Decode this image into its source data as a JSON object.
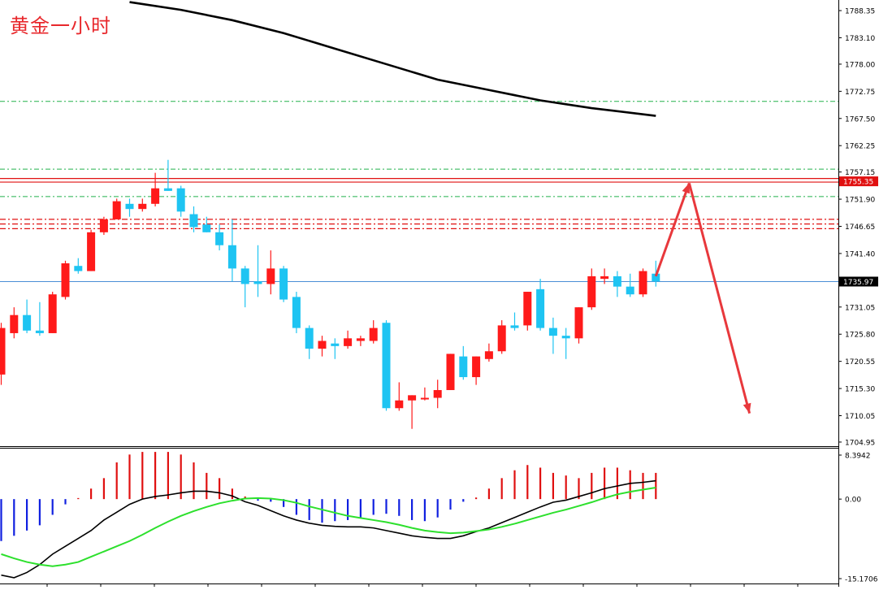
{
  "title": "黄金一小时",
  "chart_data": {
    "type": "candlestick",
    "main": {
      "y_ticks": [
        1788.35,
        1783.1,
        1778.0,
        1772.75,
        1767.5,
        1762.25,
        1757.15,
        1751.9,
        1746.65,
        1741.4,
        1731.05,
        1725.8,
        1720.55,
        1715.3,
        1710.05,
        1704.95
      ],
      "ylim": [
        1704.0,
        1790.4
      ],
      "current_price": 1735.97,
      "resistance_label": 1755.35,
      "candles": [
        {
          "o": 1718.0,
          "h": 1728.0,
          "l": 1716.0,
          "c": 1727.0,
          "dir": "up"
        },
        {
          "o": 1726.0,
          "h": 1731.0,
          "l": 1725.0,
          "c": 1729.5,
          "dir": "up"
        },
        {
          "o": 1729.5,
          "h": 1732.5,
          "l": 1726.0,
          "c": 1726.5,
          "dir": "down"
        },
        {
          "o": 1726.0,
          "h": 1732.0,
          "l": 1725.5,
          "c": 1726.5,
          "dir": "down"
        },
        {
          "o": 1726.0,
          "h": 1734.0,
          "l": 1726.0,
          "c": 1733.5,
          "dir": "up"
        },
        {
          "o": 1733.0,
          "h": 1740.0,
          "l": 1732.5,
          "c": 1739.5,
          "dir": "up"
        },
        {
          "o": 1739.0,
          "h": 1740.5,
          "l": 1737.5,
          "c": 1738.0,
          "dir": "down"
        },
        {
          "o": 1738.0,
          "h": 1746.0,
          "l": 1738.0,
          "c": 1745.5,
          "dir": "up"
        },
        {
          "o": 1745.5,
          "h": 1748.5,
          "l": 1745.0,
          "c": 1748.0,
          "dir": "up"
        },
        {
          "o": 1748.0,
          "h": 1752.0,
          "l": 1748.0,
          "c": 1751.5,
          "dir": "up"
        },
        {
          "o": 1751.0,
          "h": 1752.0,
          "l": 1748.5,
          "c": 1750.0,
          "dir": "down"
        },
        {
          "o": 1750.0,
          "h": 1752.0,
          "l": 1749.5,
          "c": 1751.0,
          "dir": "up"
        },
        {
          "o": 1751.0,
          "h": 1757.0,
          "l": 1750.5,
          "c": 1754.0,
          "dir": "up"
        },
        {
          "o": 1754.0,
          "h": 1759.5,
          "l": 1753.5,
          "c": 1753.5,
          "dir": "down"
        },
        {
          "o": 1754.0,
          "h": 1754.5,
          "l": 1748.5,
          "c": 1749.5,
          "dir": "down"
        },
        {
          "o": 1749.0,
          "h": 1750.5,
          "l": 1745.5,
          "c": 1746.5,
          "dir": "down"
        },
        {
          "o": 1747.0,
          "h": 1748.5,
          "l": 1745.5,
          "c": 1745.5,
          "dir": "down"
        },
        {
          "o": 1745.5,
          "h": 1747.0,
          "l": 1742.0,
          "c": 1743.0,
          "dir": "down"
        },
        {
          "o": 1743.0,
          "h": 1748.0,
          "l": 1736.0,
          "c": 1738.5,
          "dir": "down"
        },
        {
          "o": 1738.5,
          "h": 1739.0,
          "l": 1731.0,
          "c": 1735.5,
          "dir": "down"
        },
        {
          "o": 1736.0,
          "h": 1743.0,
          "l": 1733.0,
          "c": 1735.5,
          "dir": "down"
        },
        {
          "o": 1735.5,
          "h": 1742.0,
          "l": 1733.5,
          "c": 1738.5,
          "dir": "up"
        },
        {
          "o": 1738.5,
          "h": 1739.0,
          "l": 1732.0,
          "c": 1732.5,
          "dir": "down"
        },
        {
          "o": 1733.0,
          "h": 1734.0,
          "l": 1726.0,
          "c": 1727.0,
          "dir": "down"
        },
        {
          "o": 1727.0,
          "h": 1727.5,
          "l": 1721.0,
          "c": 1723.0,
          "dir": "down"
        },
        {
          "o": 1723.0,
          "h": 1725.5,
          "l": 1721.5,
          "c": 1724.5,
          "dir": "up"
        },
        {
          "o": 1724.0,
          "h": 1725.0,
          "l": 1721.0,
          "c": 1723.5,
          "dir": "down"
        },
        {
          "o": 1723.5,
          "h": 1726.5,
          "l": 1723.0,
          "c": 1725.0,
          "dir": "up"
        },
        {
          "o": 1725.0,
          "h": 1725.5,
          "l": 1723.5,
          "c": 1724.5,
          "dir": "up"
        },
        {
          "o": 1724.5,
          "h": 1728.5,
          "l": 1724.0,
          "c": 1727.0,
          "dir": "up"
        },
        {
          "o": 1728.0,
          "h": 1728.5,
          "l": 1711.0,
          "c": 1711.5,
          "dir": "down"
        },
        {
          "o": 1711.5,
          "h": 1716.5,
          "l": 1711.0,
          "c": 1713.0,
          "dir": "up"
        },
        {
          "o": 1713.0,
          "h": 1714.0,
          "l": 1707.5,
          "c": 1714.0,
          "dir": "up"
        },
        {
          "o": 1713.5,
          "h": 1715.5,
          "l": 1713.0,
          "c": 1713.5,
          "dir": "up"
        },
        {
          "o": 1713.5,
          "h": 1717.0,
          "l": 1711.5,
          "c": 1715.0,
          "dir": "up"
        },
        {
          "o": 1715.0,
          "h": 1722.0,
          "l": 1715.0,
          "c": 1722.0,
          "dir": "up"
        },
        {
          "o": 1721.5,
          "h": 1723.5,
          "l": 1717.0,
          "c": 1717.5,
          "dir": "down"
        },
        {
          "o": 1717.5,
          "h": 1721.5,
          "l": 1716.0,
          "c": 1721.5,
          "dir": "up"
        },
        {
          "o": 1721.0,
          "h": 1724.0,
          "l": 1720.5,
          "c": 1722.5,
          "dir": "up"
        },
        {
          "o": 1722.5,
          "h": 1728.5,
          "l": 1722.0,
          "c": 1727.5,
          "dir": "up"
        },
        {
          "o": 1727.0,
          "h": 1730.0,
          "l": 1726.5,
          "c": 1727.5,
          "dir": "down"
        },
        {
          "o": 1727.5,
          "h": 1734.0,
          "l": 1726.5,
          "c": 1734.0,
          "dir": "up"
        },
        {
          "o": 1734.5,
          "h": 1736.5,
          "l": 1726.5,
          "c": 1727.0,
          "dir": "down"
        },
        {
          "o": 1727.0,
          "h": 1729.0,
          "l": 1722.0,
          "c": 1725.5,
          "dir": "down"
        },
        {
          "o": 1725.5,
          "h": 1727.0,
          "l": 1721.0,
          "c": 1725.0,
          "dir": "down"
        },
        {
          "o": 1725.0,
          "h": 1731.0,
          "l": 1724.0,
          "c": 1731.0,
          "dir": "up"
        },
        {
          "o": 1731.0,
          "h": 1738.5,
          "l": 1730.5,
          "c": 1737.0,
          "dir": "up"
        },
        {
          "o": 1737.0,
          "h": 1738.5,
          "l": 1735.5,
          "c": 1736.5,
          "dir": "up"
        },
        {
          "o": 1737.0,
          "h": 1738.0,
          "l": 1733.0,
          "c": 1735.0,
          "dir": "down"
        },
        {
          "o": 1735.0,
          "h": 1737.5,
          "l": 1733.0,
          "c": 1733.5,
          "dir": "down"
        },
        {
          "o": 1733.5,
          "h": 1738.5,
          "l": 1733.0,
          "c": 1738.0,
          "dir": "up"
        },
        {
          "o": 1737.5,
          "h": 1740.0,
          "l": 1735.0,
          "c": 1736.0,
          "dir": "down"
        }
      ],
      "ma_line": [
        {
          "i": 10,
          "v": 1790.0
        },
        {
          "i": 14,
          "v": 1788.5
        },
        {
          "i": 18,
          "v": 1786.5
        },
        {
          "i": 22,
          "v": 1784.0
        },
        {
          "i": 26,
          "v": 1781.0
        },
        {
          "i": 30,
          "v": 1778.0
        },
        {
          "i": 34,
          "v": 1775.0
        },
        {
          "i": 38,
          "v": 1773.0
        },
        {
          "i": 42,
          "v": 1771.0
        },
        {
          "i": 46,
          "v": 1769.5
        },
        {
          "i": 51,
          "v": 1768.0
        }
      ],
      "green_levels": [
        1770.8,
        1757.7,
        1752.4
      ],
      "red_solid_levels": [
        1755.9,
        1755.2
      ],
      "red_dashdot_levels": [
        1748.0,
        1747.1,
        1746.2
      ],
      "forecast_arrows": [
        {
          "from_i": 51,
          "from_v": 1737.0,
          "to_i": 53.6,
          "to_v": 1755.0
        },
        {
          "from_i": 53.6,
          "from_v": 1755.0,
          "to_i": 58.3,
          "to_v": 1710.5
        }
      ]
    },
    "macd": {
      "y_ticks": [
        8.3942,
        0.0,
        -15.1706
      ],
      "ylim": [
        -15.1706,
        8.3942
      ],
      "histogram": [
        -8,
        -7,
        -6,
        -5,
        -3,
        -1,
        0.2,
        2,
        4,
        7,
        8.5,
        9,
        9,
        9,
        8.5,
        7,
        5,
        4,
        2,
        0.5,
        -0.3,
        -0.5,
        -1.5,
        -3,
        -4,
        -4.5,
        -4.2,
        -4,
        -3.5,
        -3,
        -2.8,
        -3.2,
        -4,
        -4.2,
        -3.5,
        -2,
        -0.5,
        0.3,
        2,
        4,
        5.5,
        6.5,
        6,
        5,
        4.5,
        4,
        5,
        6,
        6,
        5.5,
        5,
        5
      ],
      "signal_dif": [
        -14.5,
        -15,
        -14,
        -12.5,
        -10.5,
        -9,
        -7.5,
        -6,
        -4,
        -2.5,
        -1,
        0,
        0.5,
        0.8,
        1.2,
        1.5,
        1.5,
        1.2,
        0.6,
        -0.5,
        -1.2,
        -2.2,
        -3.2,
        -4,
        -4.6,
        -5,
        -5.2,
        -5.3,
        -5.3,
        -5.5,
        -6,
        -6.5,
        -7,
        -7.3,
        -7.5,
        -7.5,
        -7,
        -6.2,
        -5.5,
        -4.5,
        -3.5,
        -2.5,
        -1.5,
        -0.6,
        -0.2,
        0.5,
        1.2,
        2,
        2.5,
        3,
        3.2,
        3.5
      ],
      "signal_dea": [
        -10.5,
        -11.3,
        -12,
        -12.5,
        -12.8,
        -12.5,
        -12,
        -11,
        -10,
        -9,
        -8,
        -6.8,
        -5.5,
        -4.3,
        -3.2,
        -2.3,
        -1.5,
        -0.8,
        -0.3,
        0.1,
        0.2,
        0.1,
        -0.2,
        -0.7,
        -1.4,
        -2,
        -2.6,
        -3.2,
        -3.6,
        -4,
        -4.4,
        -4.9,
        -5.5,
        -6,
        -6.3,
        -6.5,
        -6.4,
        -6.1,
        -5.8,
        -5.3,
        -4.7,
        -4,
        -3.3,
        -2.6,
        -2,
        -1.3,
        -0.6,
        0.2,
        0.9,
        1.4,
        1.8,
        2.2
      ]
    }
  }
}
